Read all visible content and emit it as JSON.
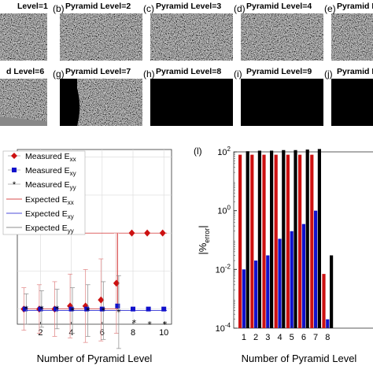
{
  "panels": [
    {
      "letter": "",
      "title": "Level=1",
      "content": "speckle"
    },
    {
      "letter": "(b)",
      "title": "Pyramid Level=2",
      "content": "speckle"
    },
    {
      "letter": "(c)",
      "title": "Pyramid Level=3",
      "content": "speckle"
    },
    {
      "letter": "(d)",
      "title": "Pyramid Level=4",
      "content": "speckle"
    },
    {
      "letter": "(e)",
      "title": "Pyramid Le",
      "content": "speckle"
    },
    {
      "letter": "",
      "title": "d Level=6",
      "content": "speckle-edge"
    },
    {
      "letter": "(g)",
      "title": "Pyramid Level=7",
      "content": "half"
    },
    {
      "letter": "(h)",
      "title": "Pyramid Level=8",
      "content": "black"
    },
    {
      "letter": "(i)",
      "title": "Pyramid Level=9",
      "content": "black"
    },
    {
      "letter": "(j)",
      "title": "Pyramid Le",
      "content": "black"
    }
  ],
  "colors": {
    "red": "#cc1111",
    "blue": "#1111cc",
    "black": "#000000",
    "gray": "#666666",
    "grid": "#dddddd"
  },
  "chart_data": [
    {
      "type": "scatter",
      "panel_label": "",
      "xlabel": "Number of Pyramid Level",
      "ylabel": "",
      "xlim": [
        0.5,
        10.5
      ],
      "ylim": [
        -0.1,
        1.05
      ],
      "xticks": [
        2,
        4,
        6,
        8,
        10
      ],
      "grid": true,
      "legend_position": "top-left",
      "legend": [
        "Measured E",
        "Measured E",
        "Measured E",
        "Expected E",
        "Expected E",
        "Expected E"
      ],
      "legend_subscripts": [
        "xx",
        "xy",
        "yy",
        "xx",
        "xy",
        "yy"
      ],
      "series": [
        {
          "name": "Measured Exx",
          "marker": "diamond",
          "color": "#cc1111",
          "x": [
            1,
            2,
            3,
            4,
            5,
            6,
            7,
            8,
            9,
            10
          ],
          "y": [
            0.0,
            0.0,
            0.0,
            0.02,
            0.02,
            0.06,
            0.17,
            0.5,
            0.5,
            0.5
          ],
          "err": [
            0.14,
            0.16,
            0.18,
            0.21,
            0.24,
            0.27,
            0.33,
            0,
            0,
            0
          ]
        },
        {
          "name": "Measured Exy",
          "marker": "square",
          "color": "#1111cc",
          "x": [
            1,
            2,
            3,
            4,
            5,
            6,
            7,
            8,
            9,
            10
          ],
          "y": [
            0.0,
            0.0,
            0.0,
            0.0,
            0.0,
            0.0,
            0.02,
            0.0,
            0.0,
            0.0
          ],
          "err": [
            0,
            0,
            0,
            0,
            0,
            0,
            0,
            0,
            0,
            0
          ]
        },
        {
          "name": "Measured Eyy",
          "marker": "star",
          "color": "#000000",
          "x": [
            1,
            2,
            3,
            4,
            5,
            6,
            7,
            8,
            9,
            10
          ],
          "y": [
            0.0,
            0.0,
            0.0,
            -0.01,
            -0.01,
            -0.01,
            -0.02,
            -0.09,
            -0.1,
            -0.1
          ],
          "err": [
            0.1,
            0.12,
            0.13,
            0.15,
            0.17,
            0.19,
            0.24,
            0,
            0,
            0
          ]
        }
      ],
      "expected": [
        {
          "name": "Expected Exx",
          "y": 0.5,
          "color": "#cc1111"
        },
        {
          "name": "Expected Exy",
          "y": -0.01,
          "color": "#1111cc"
        },
        {
          "name": "Expected Eyy",
          "y": -0.1,
          "color": "#666666"
        }
      ]
    },
    {
      "type": "bar",
      "panel_label": "(l)",
      "xlabel": "Number of Pyramid Level",
      "ylabel_main": "|%",
      "ylabel_sub": "error",
      "ylabel_end": "|",
      "yscale": "log",
      "ylim": [
        0.0001,
        100
      ],
      "yticks": [
        {
          "value": 100,
          "base": "10",
          "exp": "2"
        },
        {
          "value": 1,
          "base": "10",
          "exp": "0"
        },
        {
          "value": 0.01,
          "base": "10",
          "exp": "-2"
        },
        {
          "value": 0.0001,
          "base": "10",
          "exp": "-4"
        }
      ],
      "categories": [
        "1",
        "2",
        "3",
        "4",
        "5",
        "6",
        "7",
        "8"
      ],
      "series": [
        {
          "color": "#cc1111",
          "values": [
            80,
            80,
            80,
            80,
            80,
            80,
            80,
            0.007
          ]
        },
        {
          "color": "#1111cc",
          "values": [
            0.01,
            0.02,
            0.03,
            0.11,
            0.2,
            0.35,
            1.0,
            0.0002
          ]
        },
        {
          "color": "#000000",
          "values": [
            105,
            110,
            110,
            115,
            115,
            120,
            125,
            0.03
          ]
        }
      ]
    }
  ]
}
